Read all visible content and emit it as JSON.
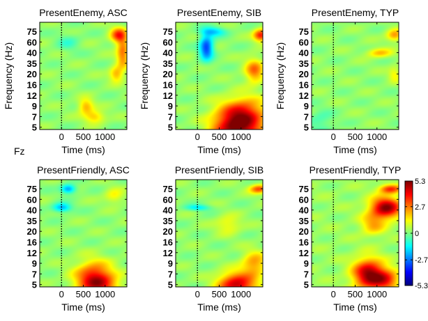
{
  "figure_label": "Fz",
  "chart_data": {
    "type": "heatmap",
    "x_unit": "ms",
    "y_unit": "Hz",
    "xlabel": "Time (ms)",
    "ylabel": "Frequency (Hz)",
    "xlim": [
      -500,
      1500
    ],
    "y_tick_labels": [
      "75",
      "60",
      "40",
      "35",
      "20",
      "16",
      "12",
      "9",
      "7",
      "5"
    ],
    "y_tick_values": [
      75,
      60,
      40,
      35,
      20,
      16,
      12,
      9,
      7,
      5
    ],
    "x_tick_labels": [
      "0",
      "500",
      "1000"
    ],
    "x_tick_values": [
      0,
      500,
      1000
    ],
    "stimulus_onset_ms": 0,
    "colorbar": {
      "colormap": "jet",
      "min": -5.3,
      "max": 5.3,
      "tick_labels": [
        "5.3",
        "2.7",
        "0",
        "-2.7",
        "-5.3"
      ],
      "tick_values": [
        5.3,
        2.7,
        0,
        -2.7,
        -5.3
      ]
    },
    "panels": [
      {
        "title": "PresentEnemy, ASC",
        "baseline": 0.2,
        "blobs": [
          {
            "t": 1300,
            "f": 70,
            "st": 130,
            "sf": 0.5,
            "v": 3.2
          },
          {
            "t": 1400,
            "f": 40,
            "st": 100,
            "sf": 1.0,
            "v": 2.6
          },
          {
            "t": 1250,
            "f": 20,
            "st": 110,
            "sf": 0.5,
            "v": 2.0
          },
          {
            "t": 550,
            "f": 9,
            "st": 120,
            "sf": 0.5,
            "v": 2.0
          },
          {
            "t": 750,
            "f": 7,
            "st": 160,
            "sf": 0.4,
            "v": 1.8
          },
          {
            "t": 150,
            "f": 60,
            "st": 180,
            "sf": 0.6,
            "v": -0.8
          }
        ]
      },
      {
        "title": "PresentEnemy, SIB",
        "baseline": 0.2,
        "blobs": [
          {
            "t": 900,
            "f": 5,
            "st": 380,
            "sf": 1.3,
            "v": 5.0
          },
          {
            "t": 1100,
            "f": 8,
            "st": 350,
            "sf": 1.0,
            "v": 2.0
          },
          {
            "t": 1300,
            "f": 25,
            "st": 150,
            "sf": 0.8,
            "v": 2.6
          },
          {
            "t": 1450,
            "f": 70,
            "st": 120,
            "sf": 0.4,
            "v": 3.6
          },
          {
            "t": 200,
            "f": 50,
            "st": 110,
            "sf": 0.8,
            "v": -3.6
          },
          {
            "t": 350,
            "f": 75,
            "st": 200,
            "sf": 0.3,
            "v": -2.0
          }
        ]
      },
      {
        "title": "PresentEnemy, TYP",
        "baseline": 0.2,
        "blobs": [
          {
            "t": 1400,
            "f": 70,
            "st": 130,
            "sf": 0.4,
            "v": 2.2
          },
          {
            "t": 1050,
            "f": 40,
            "st": 200,
            "sf": 0.3,
            "v": 1.8
          },
          {
            "t": 1400,
            "f": 20,
            "st": 100,
            "sf": 0.5,
            "v": 1.2
          },
          {
            "t": -300,
            "f": 6,
            "st": 200,
            "sf": 0.8,
            "v": -0.8
          }
        ]
      },
      {
        "title": "PresentFriendly, ASC",
        "baseline": 0.2,
        "blobs": [
          {
            "t": 750,
            "f": 6,
            "st": 300,
            "sf": 1.1,
            "v": 4.2
          },
          {
            "t": 1000,
            "f": 5,
            "st": 250,
            "sf": 0.6,
            "v": 1.2
          },
          {
            "t": 150,
            "f": 75,
            "st": 120,
            "sf": 0.3,
            "v": -2.6
          },
          {
            "t": 0,
            "f": 45,
            "st": 150,
            "sf": 0.3,
            "v": -2.4
          },
          {
            "t": 1200,
            "f": 65,
            "st": 150,
            "sf": 0.5,
            "v": 1.2
          }
        ]
      },
      {
        "title": "PresentFriendly, SIB",
        "baseline": 0.2,
        "blobs": [
          {
            "t": 900,
            "f": 5,
            "st": 300,
            "sf": 0.8,
            "v": 4.4
          },
          {
            "t": 1300,
            "f": 9,
            "st": 200,
            "sf": 0.8,
            "v": 2.2
          },
          {
            "t": 1400,
            "f": 75,
            "st": 150,
            "sf": 0.3,
            "v": 3.0
          },
          {
            "t": 0,
            "f": 45,
            "st": 200,
            "sf": 0.2,
            "v": -1.6
          },
          {
            "t": 700,
            "f": 30,
            "st": 200,
            "sf": 0.6,
            "v": 1.2
          }
        ]
      },
      {
        "title": "PresentFriendly, TYP",
        "baseline": 0.3,
        "blobs": [
          {
            "t": 1200,
            "f": 45,
            "st": 250,
            "sf": 0.7,
            "v": 4.8
          },
          {
            "t": 1300,
            "f": 75,
            "st": 180,
            "sf": 0.3,
            "v": 3.2
          },
          {
            "t": 800,
            "f": 7,
            "st": 250,
            "sf": 1.0,
            "v": 4.6
          },
          {
            "t": 1200,
            "f": 6,
            "st": 220,
            "sf": 0.7,
            "v": 3.0
          },
          {
            "t": 900,
            "f": 30,
            "st": 200,
            "sf": 0.7,
            "v": 1.8
          }
        ]
      }
    ]
  }
}
